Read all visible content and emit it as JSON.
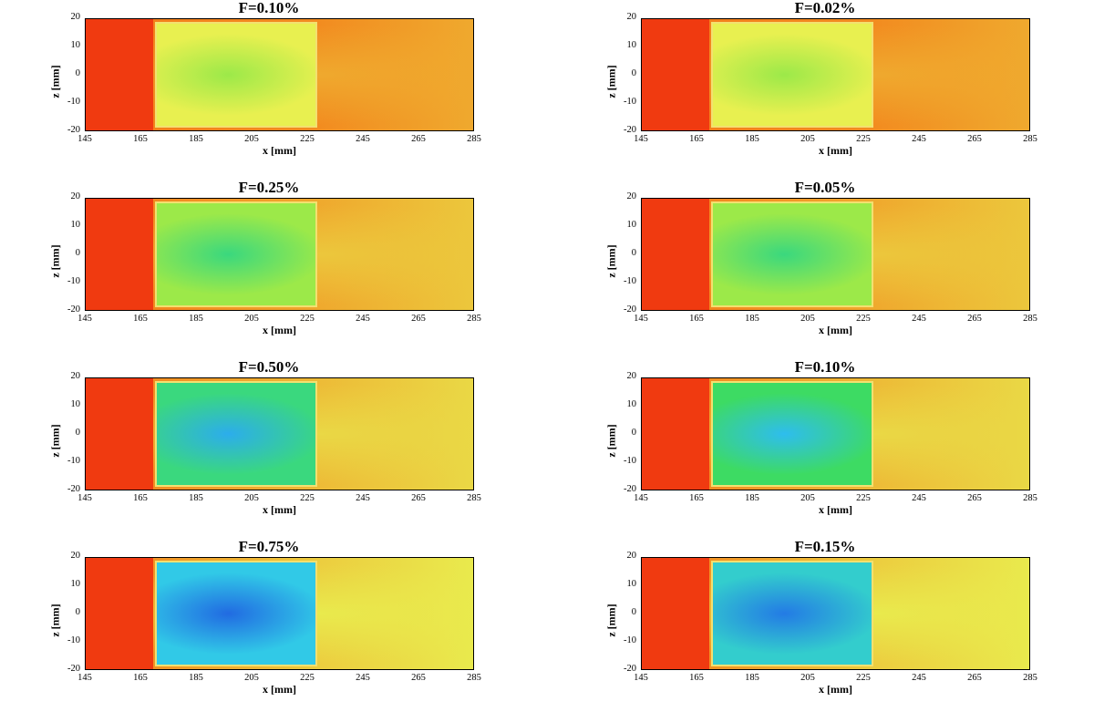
{
  "chart_data": {
    "type": "heatmap",
    "xlabel": "x [mm]",
    "ylabel": "z [mm]",
    "xlim": [
      145,
      285
    ],
    "ylim": [
      -20,
      20
    ],
    "x_ticks": [
      "145",
      "165",
      "185",
      "205",
      "225",
      "245",
      "265",
      "285"
    ],
    "y_ticks": [
      "20",
      "10",
      "0",
      "-10",
      "-20"
    ],
    "colors": {
      "hot": "#f03a10",
      "orange": "#f47a18",
      "yellow": "#e8f050",
      "green": "#40e040",
      "cyan": "#30c8f0",
      "blue": "#1e5ae0",
      "rim": "#f3e070"
    },
    "panels": [
      {
        "title": "F=0.10%",
        "inner_level": 0.15,
        "wake_level": 0.6
      },
      {
        "title": "F=0.02%",
        "inner_level": 0.15,
        "wake_level": 0.6
      },
      {
        "title": "F=0.25%",
        "inner_level": 0.45,
        "wake_level": 0.35
      },
      {
        "title": "F=0.05%",
        "inner_level": 0.45,
        "wake_level": 0.35
      },
      {
        "title": "F=0.50%",
        "inner_level": 0.75,
        "wake_level": 0.2
      },
      {
        "title": "F=0.10%",
        "inner_level": 0.7,
        "wake_level": 0.2
      },
      {
        "title": "F=0.75%",
        "inner_level": 0.95,
        "wake_level": 0.05
      },
      {
        "title": "F=0.15%",
        "inner_level": 0.9,
        "wake_level": 0.05
      }
    ]
  }
}
